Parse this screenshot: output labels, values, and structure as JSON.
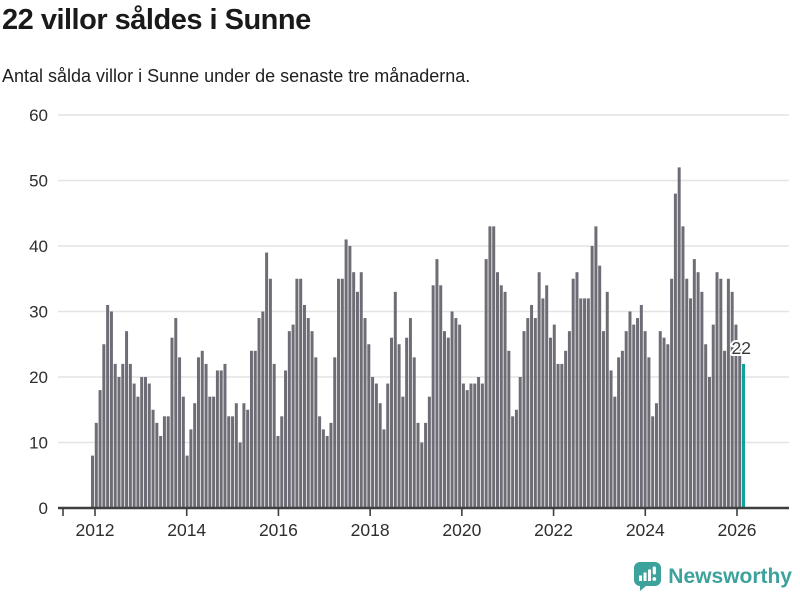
{
  "header": {
    "title": "22 villor såldes i Sunne",
    "subtitle": "Antal sålda villor i Sunne under de senaste tre månaderna."
  },
  "chart_data": {
    "type": "bar",
    "title": "22 villor såldes i Sunne",
    "subtitle": "Antal sålda villor i Sunne under de senaste tre månaderna.",
    "xlabel": "",
    "ylabel": "",
    "ylim": [
      0,
      60
    ],
    "y_ticks": [
      0,
      10,
      20,
      30,
      40,
      50,
      60
    ],
    "grid": "horizontal",
    "legend": "none",
    "x_start": "2012",
    "x_tick_labels": [
      "2012",
      "2014",
      "2016",
      "2018",
      "2020",
      "2022",
      "2024",
      "2026"
    ],
    "values": [
      8,
      13,
      18,
      25,
      31,
      30,
      22,
      20,
      22,
      27,
      22,
      19,
      17,
      20,
      20,
      19,
      15,
      13,
      11,
      14,
      14,
      26,
      29,
      23,
      17,
      8,
      12,
      16,
      23,
      24,
      22,
      17,
      17,
      21,
      21,
      22,
      14,
      14,
      16,
      10,
      16,
      15,
      24,
      24,
      29,
      30,
      39,
      35,
      22,
      11,
      14,
      21,
      27,
      28,
      35,
      35,
      31,
      29,
      27,
      23,
      14,
      12,
      11,
      13,
      23,
      35,
      35,
      41,
      40,
      36,
      33,
      36,
      29,
      25,
      20,
      19,
      16,
      12,
      19,
      26,
      33,
      25,
      17,
      26,
      29,
      23,
      13,
      10,
      13,
      17,
      34,
      38,
      34,
      27,
      26,
      30,
      29,
      28,
      19,
      18,
      19,
      19,
      20,
      19,
      38,
      43,
      43,
      36,
      34,
      33,
      24,
      14,
      15,
      20,
      27,
      29,
      31,
      29,
      36,
      32,
      34,
      26,
      28,
      22,
      22,
      24,
      27,
      35,
      36,
      32,
      32,
      32,
      40,
      43,
      37,
      27,
      33,
      21,
      17,
      23,
      24,
      27,
      30,
      28,
      29,
      31,
      27,
      23,
      14,
      16,
      27,
      26,
      25,
      35,
      48,
      52,
      43,
      35,
      32,
      38,
      36,
      33,
      25,
      20,
      28,
      36,
      35,
      24,
      35,
      33,
      28,
      25,
      22
    ],
    "highlight_last_bar": true,
    "highlight_value": 22,
    "annotation": {
      "text": "22"
    },
    "colors": {
      "bar": "#6e6d76",
      "highlight": "#10a29d",
      "grid": "#e4e4e4",
      "axis": "#3f3f3f",
      "tick_label": "#2e2e2e",
      "annotation_text": "#3a3a3a"
    }
  },
  "footer": {
    "brand": "Newsworthy",
    "brand_color": "#3da29b",
    "logo_icon": "bar-chart-speech-bubble-icon"
  }
}
